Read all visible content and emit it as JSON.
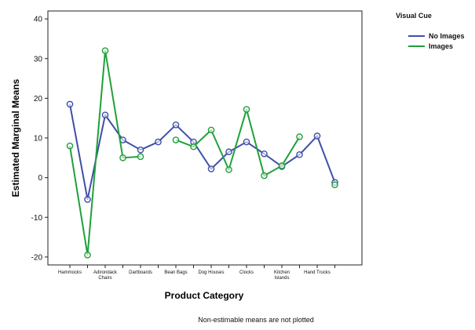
{
  "chart_data": {
    "type": "line",
    "xlabel": "Product Category",
    "ylabel": "Estimated Marginal Means",
    "ylim": [
      -22,
      42
    ],
    "yticks": [
      -20,
      -10,
      0,
      10,
      20,
      30,
      40
    ],
    "grid": false,
    "legend_title": "Visual Cue",
    "legend_position": "top-right",
    "footnote": "Non-estimable means are not plotted",
    "categories": [
      "Hammocks",
      "",
      "Adirondack Chairs",
      "",
      "Dartboards",
      "",
      "Bean Bags",
      "",
      "Dog Houses",
      "",
      "Clocks",
      "",
      "Kitchen Islands",
      "",
      "Hand Trucks",
      ""
    ],
    "series": [
      {
        "name": "No Images",
        "color": "#3f4fa8",
        "values": [
          18.5,
          -5.5,
          15.8,
          9.5,
          7,
          9,
          13.3,
          9,
          2.2,
          6.5,
          9,
          6,
          2.8,
          5.8,
          10.5,
          -1.2
        ]
      },
      {
        "name": "Images",
        "color": "#20a03a",
        "values": [
          8,
          -19.5,
          32,
          5,
          5.3,
          null,
          9.5,
          7.8,
          12,
          2,
          17.2,
          0.5,
          3,
          10.3,
          null,
          -1.8
        ]
      }
    ]
  }
}
